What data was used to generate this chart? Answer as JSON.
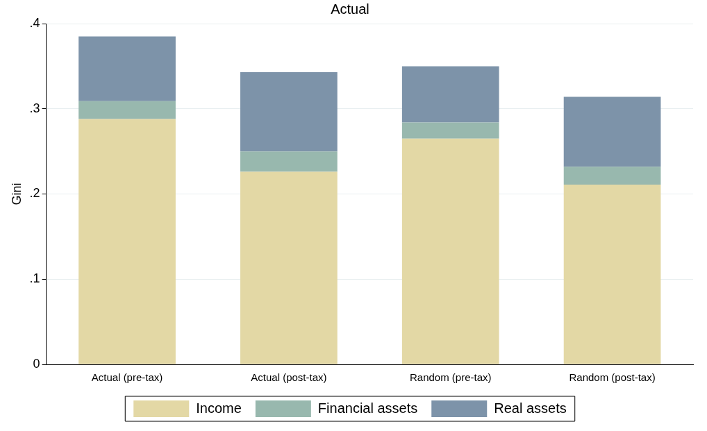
{
  "chart_data": {
    "type": "bar",
    "title": "Actual",
    "ylabel": "Gini",
    "stacked": true,
    "grid": "y",
    "legend": "bottom",
    "categories": [
      "Actual (pre-tax)",
      "Actual (post-tax)",
      "Random (pre-tax)",
      "Random (post-tax)"
    ],
    "series": [
      {
        "name": "Income",
        "color": "#e3d8a5",
        "values": [
          0.288,
          0.226,
          0.265,
          0.211
        ]
      },
      {
        "name": "Financial assets",
        "color": "#98b8ae",
        "values": [
          0.021,
          0.024,
          0.019,
          0.021
        ]
      },
      {
        "name": "Real assets",
        "color": "#7d93a9",
        "values": [
          0.076,
          0.093,
          0.066,
          0.082
        ]
      }
    ],
    "ylim": [
      0,
      0.4
    ],
    "yticks": [
      0,
      {
        "value": 0.1,
        "label": ".1"
      },
      {
        "value": 0.2,
        "label": ".2"
      },
      {
        "value": 0.3,
        "label": ".3"
      },
      {
        "value": 0.4,
        "label": ".4"
      }
    ]
  }
}
